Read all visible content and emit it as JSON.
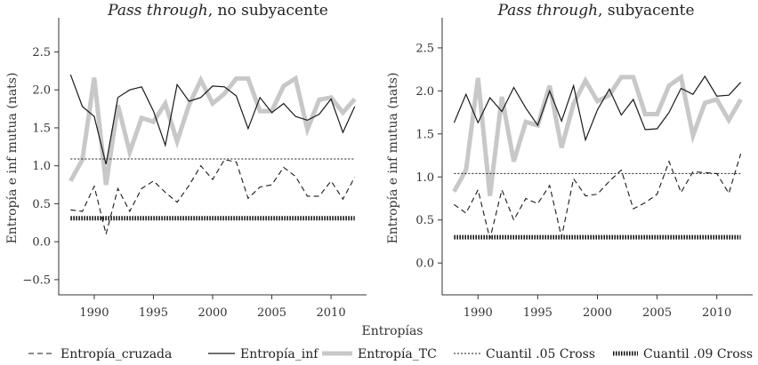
{
  "chart_data": [
    {
      "type": "line",
      "title": {
        "italic": "Pass through",
        "rest": ", no subyacente"
      },
      "ylabel": "Entropía e inf mutua (nats)",
      "ylim": [
        -0.7,
        2.95
      ],
      "yticks": [
        -0.5,
        0.0,
        0.5,
        1.0,
        1.5,
        2.0,
        2.5
      ],
      "ytick_labels": [
        "−0.5",
        "0.0",
        "0.5",
        "1.0",
        "1.5",
        "2.0",
        "2.5"
      ],
      "xlim": [
        1987,
        2013
      ],
      "xticks": [
        1990,
        1995,
        2000,
        2005,
        2010
      ],
      "xtick_labels": [
        "1990",
        "1995",
        "2000",
        "2005",
        "2010"
      ],
      "x": [
        1988,
        1989,
        1990,
        1991,
        1992,
        1993,
        1994,
        1995,
        1996,
        1997,
        1998,
        1999,
        2000,
        2001,
        2002,
        2003,
        2004,
        2005,
        2006,
        2007,
        2008,
        2009,
        2010,
        2011,
        2012
      ],
      "series": [
        {
          "name": "Entropía_cruzada",
          "values": [
            0.42,
            0.4,
            0.73,
            0.1,
            0.7,
            0.4,
            0.7,
            0.8,
            0.65,
            0.52,
            0.74,
            1.0,
            0.82,
            1.08,
            1.05,
            0.57,
            0.72,
            0.75,
            0.98,
            0.86,
            0.6,
            0.6,
            0.8,
            0.56,
            0.85
          ]
        },
        {
          "name": "Entropía_inf",
          "values": [
            2.2,
            1.78,
            1.65,
            1.02,
            1.9,
            2.0,
            2.04,
            1.72,
            1.27,
            2.07,
            1.85,
            1.9,
            2.05,
            2.04,
            1.92,
            1.49,
            1.9,
            1.7,
            1.82,
            1.65,
            1.6,
            1.68,
            1.88,
            1.44,
            1.78
          ]
        },
        {
          "name": "Entropía_TC",
          "values": [
            0.8,
            1.08,
            2.16,
            0.75,
            1.8,
            1.18,
            1.63,
            1.58,
            1.82,
            1.32,
            1.8,
            2.13,
            1.82,
            1.95,
            2.15,
            2.15,
            1.72,
            1.72,
            2.05,
            2.15,
            1.48,
            1.87,
            1.9,
            1.7,
            1.88
          ]
        },
        {
          "name": "Cuantil .05 Cross",
          "values": [
            1.09,
            1.09,
            1.09,
            1.09,
            1.09,
            1.09,
            1.09,
            1.09,
            1.09,
            1.09,
            1.09,
            1.09,
            1.09,
            1.09,
            1.09,
            1.09,
            1.09,
            1.09,
            1.09,
            1.09,
            1.09,
            1.09,
            1.09,
            1.09,
            1.09
          ]
        },
        {
          "name": "Cuantil .09 Cross",
          "values": [
            0.31,
            0.31,
            0.31,
            0.31,
            0.31,
            0.31,
            0.31,
            0.31,
            0.31,
            0.31,
            0.31,
            0.31,
            0.31,
            0.31,
            0.31,
            0.31,
            0.31,
            0.31,
            0.31,
            0.31,
            0.31,
            0.31,
            0.31,
            0.31,
            0.31
          ]
        }
      ]
    },
    {
      "type": "line",
      "title": {
        "italic": "Pass through",
        "rest": ", subyacente"
      },
      "ylabel": "Entropía e inf mutua (nats)",
      "ylim": [
        -0.37,
        2.85
      ],
      "yticks": [
        0.0,
        0.5,
        1.0,
        1.5,
        2.0,
        2.5
      ],
      "ytick_labels": [
        "0.0",
        "0.5",
        "1.0",
        "1.5",
        "2.0",
        "2.5"
      ],
      "xlim": [
        1987,
        2013
      ],
      "xticks": [
        1990,
        1995,
        2000,
        2005,
        2010
      ],
      "xtick_labels": [
        "1990",
        "1995",
        "2000",
        "2005",
        "2010"
      ],
      "x": [
        1988,
        1989,
        1990,
        1991,
        1992,
        1993,
        1994,
        1995,
        1996,
        1997,
        1998,
        1999,
        2000,
        2001,
        2002,
        2003,
        2004,
        2005,
        2006,
        2007,
        2008,
        2009,
        2010,
        2011,
        2012
      ],
      "series": [
        {
          "name": "Entropía_cruzada",
          "values": [
            0.68,
            0.58,
            0.85,
            0.28,
            0.85,
            0.5,
            0.75,
            0.69,
            0.9,
            0.3,
            0.98,
            0.78,
            0.8,
            0.95,
            1.08,
            0.63,
            0.7,
            0.8,
            1.18,
            0.82,
            1.06,
            1.05,
            1.04,
            0.81,
            1.27
          ]
        },
        {
          "name": "Entropía_inf",
          "values": [
            1.63,
            1.96,
            1.63,
            1.92,
            1.76,
            2.04,
            1.8,
            1.6,
            2.0,
            1.65,
            2.06,
            1.43,
            1.78,
            2.02,
            1.72,
            1.9,
            1.55,
            1.56,
            1.75,
            2.03,
            1.96,
            2.17,
            1.94,
            1.95,
            2.1
          ]
        },
        {
          "name": "Entropía_TC",
          "values": [
            0.83,
            1.08,
            2.15,
            0.78,
            1.93,
            1.18,
            1.64,
            1.6,
            2.06,
            1.34,
            1.85,
            2.12,
            1.88,
            1.95,
            2.16,
            2.16,
            1.73,
            1.73,
            2.06,
            2.16,
            1.48,
            1.86,
            1.9,
            1.66,
            1.9
          ]
        },
        {
          "name": "Cuantil .05 Cross",
          "values": [
            1.04,
            1.04,
            1.04,
            1.04,
            1.04,
            1.04,
            1.04,
            1.04,
            1.04,
            1.04,
            1.04,
            1.04,
            1.04,
            1.04,
            1.04,
            1.04,
            1.04,
            1.04,
            1.04,
            1.04,
            1.04,
            1.04,
            1.04,
            1.04,
            1.04
          ]
        },
        {
          "name": "Cuantil .09 Cross",
          "values": [
            0.3,
            0.3,
            0.3,
            0.3,
            0.3,
            0.3,
            0.3,
            0.3,
            0.3,
            0.3,
            0.3,
            0.3,
            0.3,
            0.3,
            0.3,
            0.3,
            0.3,
            0.3,
            0.3,
            0.3,
            0.3,
            0.3,
            0.3,
            0.3,
            0.3
          ]
        }
      ]
    }
  ],
  "xlabel": "Entropías",
  "legend": [
    {
      "name": "Entropía_cruzada",
      "style": "dashed"
    },
    {
      "name": "Entropía_inf",
      "style": "solid"
    },
    {
      "name": "Entropía_TC",
      "style": "thick-gray"
    },
    {
      "name": "Cuantil .05 Cross",
      "style": "dotted"
    },
    {
      "name": "Cuantil .09 Cross",
      "style": "thick-dotted"
    }
  ],
  "colors": {
    "ink": "#1a1a1a",
    "tc": "#c8c8c8",
    "axis": "#333333"
  }
}
